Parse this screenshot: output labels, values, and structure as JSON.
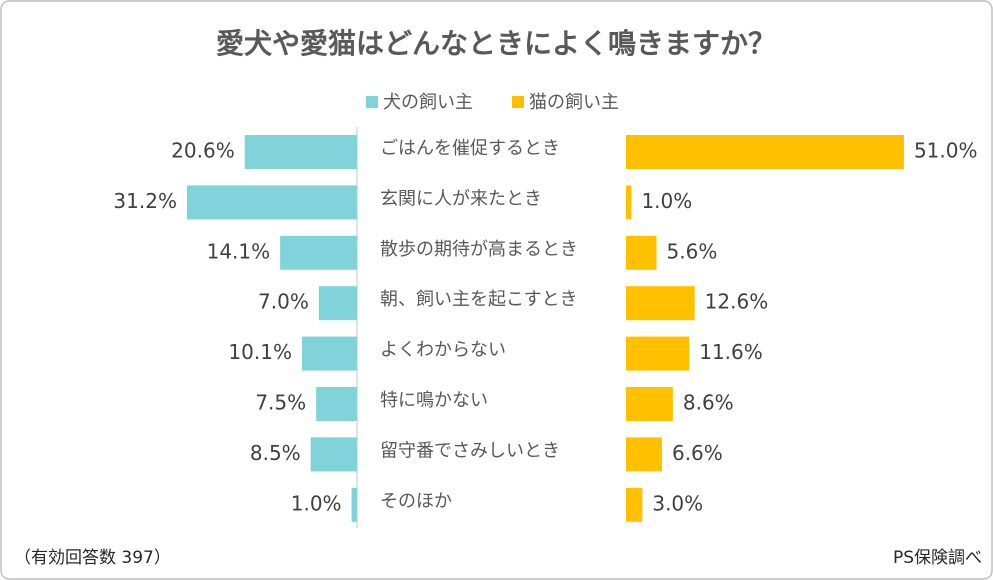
{
  "chart_data": {
    "type": "butterfly",
    "title": "愛犬や愛猫はどんなときによく鳴きますか？",
    "categories": [
      "ごはんを催促するとき",
      "玄関に人が来たとき",
      "散歩の期待が高まるとき",
      "朝、飼い主を起こすとき",
      "よくわからない",
      "特に鳴かない",
      "留守番でさみしいとき",
      "そのほか"
    ],
    "series": [
      {
        "name": "犬の飼い主",
        "color": "#7fd3d9",
        "values": [
          20.6,
          31.2,
          14.1,
          7.0,
          10.1,
          7.5,
          8.5,
          1.0
        ],
        "value_labels": [
          "20.6%",
          "31.2%",
          "14.1%",
          "7.0%",
          "10.1%",
          "7.5%",
          "8.5%",
          "1.0%"
        ]
      },
      {
        "name": "猫の飼い主",
        "color": "#ffc000",
        "values": [
          51.0,
          1.0,
          5.6,
          12.6,
          11.6,
          8.6,
          6.6,
          3.0
        ],
        "value_labels": [
          "51.0%",
          "1.0%",
          "5.6%",
          "12.6%",
          "11.6%",
          "8.6%",
          "6.6%",
          "3.0%"
        ]
      }
    ],
    "note_left": "（有効回答数 397）",
    "note_right": "PS保険調べ"
  }
}
